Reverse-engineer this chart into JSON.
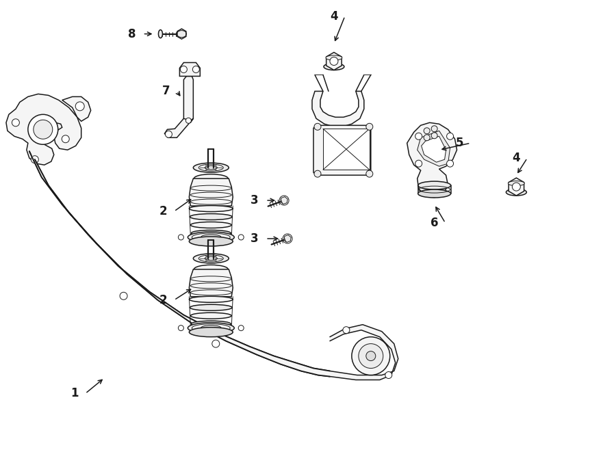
{
  "background_color": "#ffffff",
  "line_color": "#1a1a1a",
  "figure_width": 9.0,
  "figure_height": 6.61,
  "dpi": 100,
  "lw_main": 1.1,
  "lw_thin": 0.7,
  "fc_light": "#f5f5f5",
  "fc_mid": "#ececec",
  "fc_dark": "#dddddd"
}
